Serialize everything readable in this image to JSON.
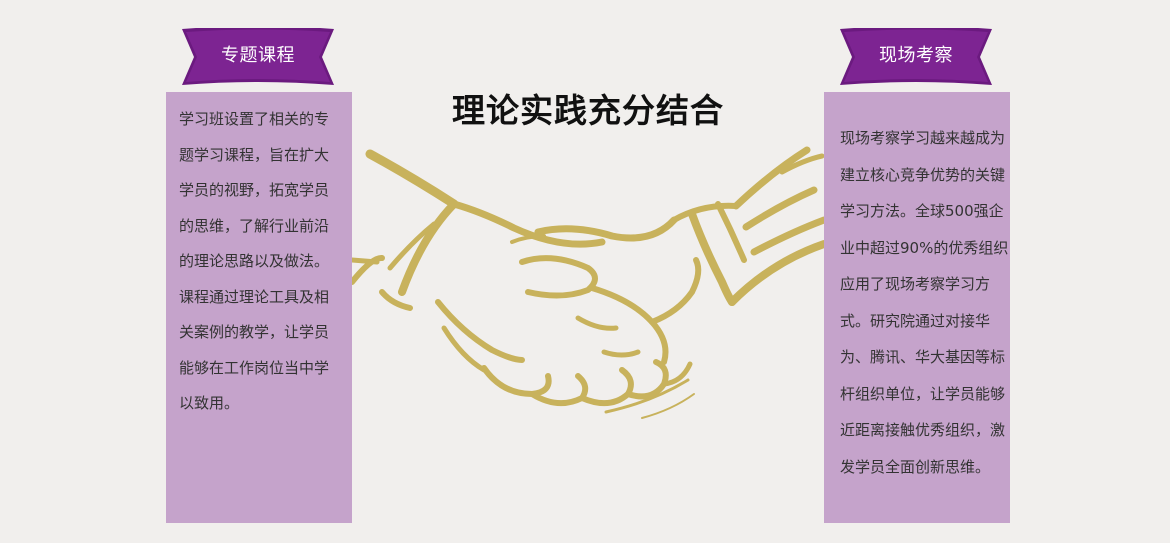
{
  "left_ribbon": {
    "label": "专题课程"
  },
  "right_ribbon": {
    "label": "现场考察"
  },
  "headline": "理论实践充分结合",
  "left_panel": {
    "text": "学习班设置了相关的专题学习课程，旨在扩大学员的视野，拓宽学员的思维，了解行业前沿的理论思路以及做法。课程通过理论工具及相关案例的教学，让学员能够在工作岗位当中学以致用。"
  },
  "right_panel": {
    "text": "现场考察学习越来越成为建立核心竞争优势的关键学习方法。全球500强企业中超过90%的优秀组织应用了现场考察学习方式。研究院通过对接华为、腾讯、华大基因等标杆组织单位，让学员能够近距离接触优秀组织，激发学员全面创新思维。"
  },
  "colors": {
    "background": "#f1efed",
    "ribbon_purple": "#6b1a7f",
    "panel_lilac": "#c5a3cb",
    "handshake_gold": "#c8b25c"
  },
  "icons": {
    "center_illustration": "handshake-icon"
  }
}
